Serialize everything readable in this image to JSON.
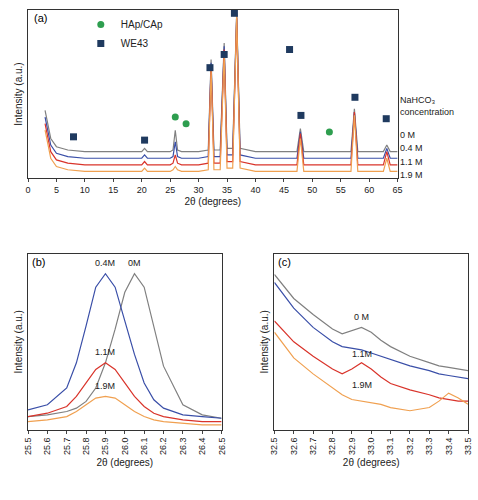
{
  "chart_data": [
    {
      "type": "line",
      "panel_label": "(a)",
      "x_label": "2θ (degrees)",
      "y_label": "Intensity (a.u.)",
      "x": [
        3,
        4,
        5,
        7,
        10,
        15,
        20,
        20.5,
        21,
        25,
        25.5,
        25.9,
        26.3,
        27,
        30,
        31.7,
        32.2,
        32.7,
        33.8,
        34.5,
        35,
        36,
        36.7,
        37.3,
        40,
        45,
        47.3,
        47.9,
        48.5,
        50,
        55,
        56.8,
        57.4,
        58,
        60,
        62.5,
        63.1,
        63.7,
        65
      ],
      "xlim": [
        0,
        65
      ],
      "xticks": [
        0,
        5,
        10,
        15,
        20,
        25,
        30,
        35,
        40,
        45,
        50,
        55,
        60,
        65
      ],
      "ylim": [
        0,
        102
      ],
      "tick_labels": "x",
      "grid": false,
      "legend": "upper left",
      "series": [
        {
          "name": "0 M",
          "color": "#808080",
          "values": [
            41,
            24,
            19,
            17,
            16,
            16,
            16,
            18,
            16,
            16,
            17,
            29,
            17,
            16,
            16,
            17,
            72,
            17,
            17,
            82,
            18,
            18,
            100,
            18,
            16,
            16,
            16,
            30,
            16,
            16,
            16,
            16,
            42,
            16,
            16,
            16,
            20,
            16,
            16
          ]
        },
        {
          "name": "0.4 M",
          "color": "#3a4fa8",
          "values": [
            37,
            20,
            15,
            13,
            12,
            12,
            12,
            14,
            12,
            12,
            13,
            22,
            13,
            12,
            12,
            13,
            70,
            13,
            13,
            80,
            14,
            14,
            99,
            14,
            12,
            12,
            12,
            28,
            12,
            12,
            12,
            12,
            40,
            12,
            12,
            12,
            18,
            12,
            12
          ]
        },
        {
          "name": "1.1 M",
          "color": "#d9342b",
          "values": [
            33,
            16,
            11,
            9,
            8,
            8,
            8,
            10,
            8,
            8,
            9,
            14,
            9,
            8,
            8,
            9,
            68,
            9,
            9,
            78,
            10,
            10,
            97,
            10,
            8,
            8,
            8,
            27,
            8,
            8,
            8,
            8,
            40,
            8,
            8,
            8,
            16,
            8,
            8
          ]
        },
        {
          "name": "1.9 M",
          "color": "#f0a050",
          "values": [
            29,
            12,
            7,
            5,
            4,
            4,
            4,
            6,
            4,
            4,
            5,
            7,
            5,
            4,
            4,
            5,
            66,
            5,
            5,
            76,
            6,
            6,
            99,
            6,
            4,
            4,
            4,
            24,
            4,
            4,
            4,
            4,
            38,
            4,
            4,
            4,
            12,
            4,
            4
          ]
        }
      ],
      "marker_series": [
        {
          "name": "HAp/CAp",
          "type": "scatter",
          "marker": "circle",
          "color": "#2e9e4f",
          "x": [
            25.9,
            27.8,
            53
          ],
          "values": [
            37,
            33,
            28
          ]
        },
        {
          "name": "WE43",
          "type": "scatter",
          "marker": "square",
          "color": "#1f3a5f",
          "x": [
            8,
            20.5,
            32,
            34.5,
            36.3,
            46,
            48,
            57.5,
            63
          ],
          "values": [
            25,
            23,
            67,
            75,
            100,
            78,
            38,
            49,
            36
          ]
        }
      ],
      "label_title": {
        "lines": [
          "NaHCO₃",
          "concentration"
        ],
        "x": 65,
        "y": 36
      },
      "labels": [
        {
          "text": "0 M",
          "x": 65,
          "y": 26
        },
        {
          "text": "0.4 M",
          "x": 65,
          "y": 18
        },
        {
          "text": "1.1 M",
          "x": 65,
          "y": 10
        },
        {
          "text": "1.9 M",
          "x": 65,
          "y": 2
        }
      ]
    },
    {
      "type": "line",
      "panel_label": "(b)",
      "x_label": "2θ (degrees)",
      "y_label": "Intensity (a.u.)",
      "x": [
        25.5,
        25.6,
        25.7,
        25.75,
        25.8,
        25.85,
        25.9,
        25.95,
        26.0,
        26.05,
        26.1,
        26.15,
        26.2,
        26.3,
        26.4,
        26.5
      ],
      "xlim": [
        25.5,
        26.5
      ],
      "xticks": [
        25.5,
        25.6,
        25.7,
        25.8,
        25.9,
        {
          "value": 26,
          "label": "26.0"
        },
        26.1,
        26.2,
        26.3,
        26.4,
        26.5
      ],
      "ylim": [
        0,
        105
      ],
      "tick_labels": "x",
      "grid": false,
      "series": [
        {
          "name": "0M",
          "color": "#808080",
          "values": [
            8,
            9,
            11,
            13,
            17,
            25,
            40,
            60,
            82,
            93,
            85,
            62,
            38,
            15,
            9,
            7
          ]
        },
        {
          "name": "0.4M",
          "color": "#3a4fa8",
          "values": [
            12,
            15,
            25,
            40,
            62,
            85,
            93,
            85,
            65,
            45,
            28,
            18,
            13,
            9,
            8,
            7
          ]
        },
        {
          "name": "1.1M",
          "color": "#d9342b",
          "values": [
            8,
            10,
            14,
            20,
            28,
            36,
            40,
            36,
            28,
            20,
            14,
            10,
            8,
            6,
            5,
            5
          ]
        },
        {
          "name": "1.9M",
          "color": "#f0a050",
          "values": [
            5,
            6,
            8,
            11,
            15,
            19,
            20,
            19,
            15,
            11,
            8,
            6,
            5,
            4,
            3,
            3
          ]
        }
      ],
      "labels": [
        {
          "text": "0.4M",
          "x": 25.9,
          "y": 95
        },
        {
          "text": "0M",
          "x": 26.05,
          "y": 95
        },
        {
          "text": "1.1M",
          "x": 25.9,
          "y": 42
        },
        {
          "text": "1.9M",
          "x": 25.9,
          "y": 22
        }
      ]
    },
    {
      "type": "line",
      "panel_label": "(c)",
      "x_label": "2θ (degrees)",
      "y_label": "Intensity (a.u.)",
      "x": [
        32.5,
        32.6,
        32.7,
        32.8,
        32.85,
        32.9,
        32.95,
        33.0,
        33.05,
        33.1,
        33.2,
        33.3,
        33.35,
        33.4,
        33.45,
        33.5
      ],
      "xlim": [
        32.5,
        33.5
      ],
      "xticks": [
        32.5,
        32.6,
        32.7,
        32.8,
        32.9,
        {
          "value": 33,
          "label": "33.0"
        },
        33.1,
        33.2,
        33.3,
        33.4,
        33.5
      ],
      "ylim": [
        0,
        110
      ],
      "tick_labels": "x",
      "grid": false,
      "series": [
        {
          "name": "0 M",
          "color": "#808080",
          "values": [
            97,
            82,
            72,
            63,
            60,
            62,
            64,
            61,
            56,
            52,
            46,
            42,
            40,
            39,
            38,
            37
          ]
        },
        {
          "name": "0.4M",
          "color": "#3a4fa8",
          "values": [
            92,
            76,
            64,
            55,
            52,
            51,
            50,
            48,
            46,
            44,
            40,
            37,
            35,
            34,
            33,
            32
          ]
        },
        {
          "name": "1.1M",
          "color": "#d9342b",
          "values": [
            68,
            55,
            46,
            38,
            35,
            38,
            42,
            38,
            33,
            29,
            25,
            22,
            20,
            19,
            18,
            18
          ]
        },
        {
          "name": "1.9M",
          "color": "#f0a050",
          "values": [
            61,
            45,
            35,
            26,
            22,
            19,
            18,
            17,
            16,
            14,
            12,
            14,
            18,
            23,
            20,
            16
          ]
        }
      ],
      "labels": [
        {
          "text": "0 M",
          "x": 32.95,
          "y": 66
        },
        {
          "text": "1.1M",
          "x": 32.95,
          "y": 43
        },
        {
          "text": "1.9M",
          "x": 32.95,
          "y": 24
        }
      ]
    }
  ]
}
